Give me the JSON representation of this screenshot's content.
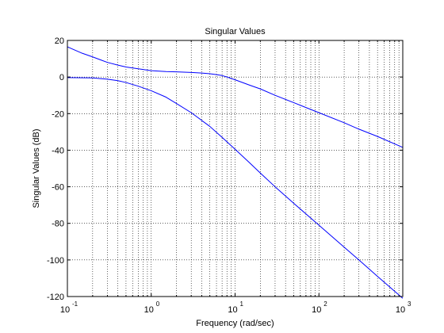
{
  "chart_data": {
    "type": "line",
    "title": "Singular Values",
    "xlabel": "Frequency (rad/sec)",
    "ylabel": "Singular Values (dB)",
    "x_scale": "log",
    "xlim": [
      0.1,
      1000
    ],
    "ylim": [
      -120,
      20
    ],
    "x_ticks": [
      {
        "value": 0.1,
        "base": "10",
        "exp": "-1"
      },
      {
        "value": 1,
        "base": "10",
        "exp": "0"
      },
      {
        "value": 10,
        "base": "10",
        "exp": "1"
      },
      {
        "value": 100,
        "base": "10",
        "exp": "2"
      },
      {
        "value": 1000,
        "base": "10",
        "exp": "3"
      }
    ],
    "y_ticks": [
      20,
      0,
      -20,
      -40,
      -60,
      -80,
      -100,
      -120
    ],
    "grid": true,
    "grid_style": "dotted",
    "line_color": "#0000ff",
    "series": [
      {
        "x": [
          0.1,
          0.15,
          0.2,
          0.3,
          0.4,
          0.5,
          0.7,
          1,
          1.5,
          2,
          3,
          4,
          5,
          6,
          7,
          8,
          10,
          15,
          20,
          30,
          50,
          100,
          200,
          300,
          500,
          1000
        ],
        "y": [
          16.5,
          13,
          11,
          8,
          6.5,
          5.5,
          4.5,
          3.5,
          3,
          2.8,
          2.5,
          2.2,
          1.8,
          1.3,
          0.8,
          0,
          -1.5,
          -4.5,
          -6.5,
          -10,
          -14,
          -19.5,
          -25,
          -28.5,
          -32.5,
          -38.5
        ]
      },
      {
        "x": [
          0.1,
          0.2,
          0.3,
          0.4,
          0.5,
          0.7,
          1,
          1.5,
          2,
          3,
          5,
          7,
          10,
          15,
          20,
          30,
          50,
          100,
          200,
          300,
          500,
          1000
        ],
        "y": [
          -0.3,
          -0.5,
          -1.2,
          -2,
          -3,
          -5,
          -7.5,
          -11,
          -14.5,
          -19.5,
          -27,
          -33,
          -39.5,
          -47,
          -52.5,
          -60,
          -69,
          -81,
          -93,
          -100,
          -109,
          -121
        ]
      }
    ]
  }
}
